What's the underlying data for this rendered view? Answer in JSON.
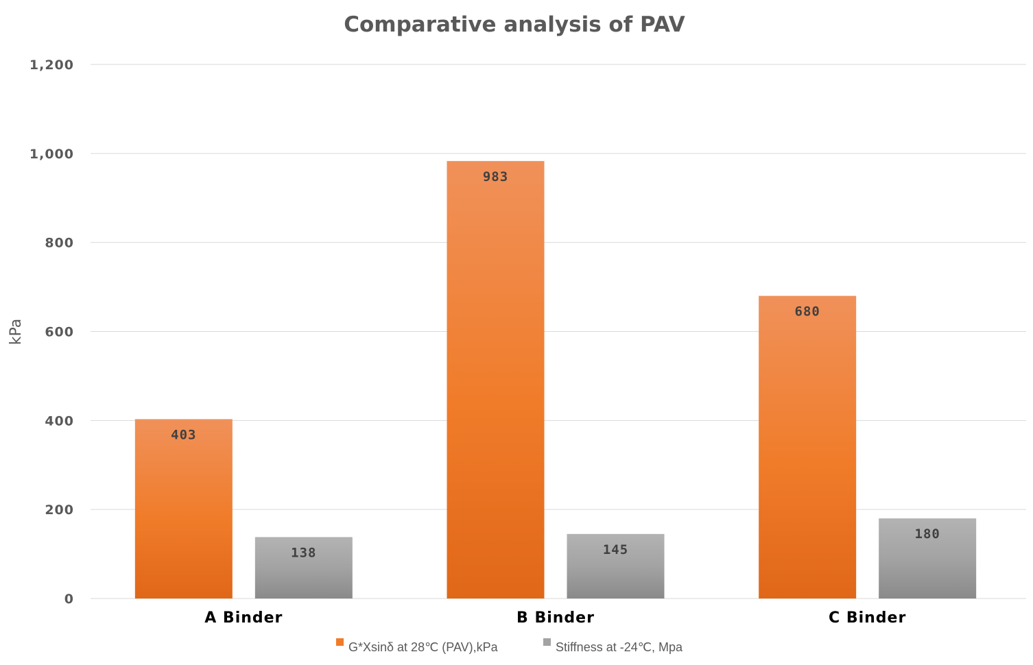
{
  "chart_data": {
    "type": "bar",
    "title": "Comparative analysis of PAV",
    "xlabel": "",
    "ylabel": "kPa",
    "ylim": [
      0,
      1200
    ],
    "yticks": [
      0,
      200,
      400,
      600,
      800,
      1000,
      1200
    ],
    "ytick_labels": [
      "0",
      "200",
      "400",
      "600",
      "800",
      "1,000",
      "1,200"
    ],
    "categories": [
      "A Binder",
      "B Binder",
      "C Binder"
    ],
    "series": [
      {
        "name": "G*Xsinδ at 28℃ (PAV),kPa",
        "values": [
          403,
          983,
          680
        ],
        "color_top": "#f0915a",
        "color_mid": "#f07c2a",
        "color_bottom": "#e06718"
      },
      {
        "name": "Stiffness at -24℃, Mpa",
        "values": [
          138,
          145,
          180
        ],
        "color_top": "#b3b3b3",
        "color_mid": "#a3a3a3",
        "color_bottom": "#8a8a8a"
      }
    ],
    "grid": true,
    "legend_position": "bottom"
  }
}
